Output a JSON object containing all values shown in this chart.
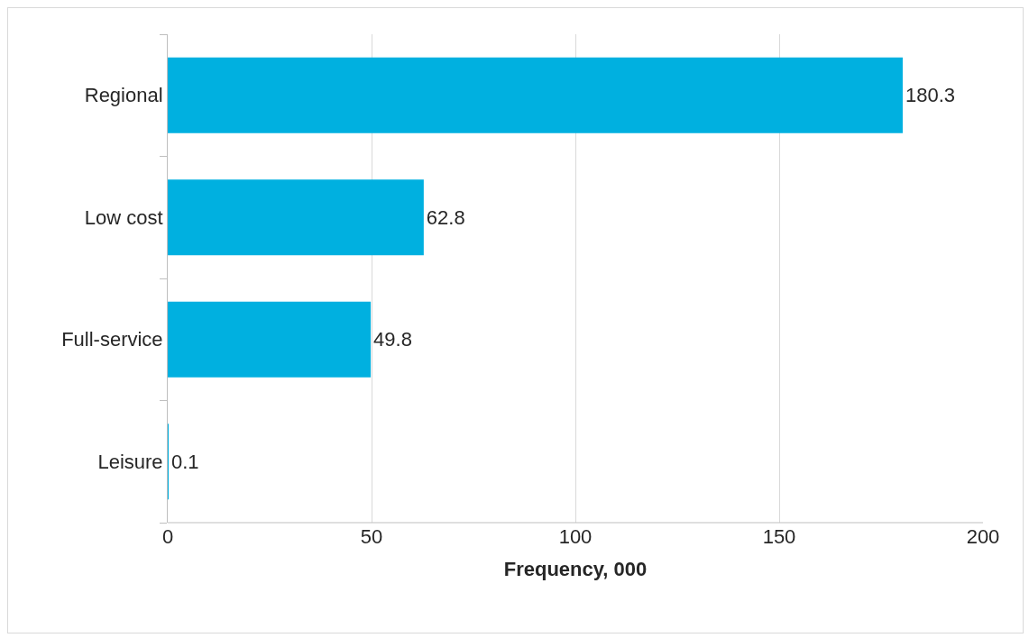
{
  "chart_data": {
    "type": "bar",
    "orientation": "horizontal",
    "xlabel": "Frequency, 000",
    "categories": [
      "Regional",
      "Low cost",
      "Full-service",
      "Leisure"
    ],
    "values": [
      180.3,
      62.8,
      49.8,
      0.1
    ],
    "color": "#00b0e0",
    "xlim": [
      0,
      200
    ],
    "xticks": [
      0,
      50,
      100,
      150,
      200
    ],
    "grid": "x",
    "data_labels": true
  }
}
